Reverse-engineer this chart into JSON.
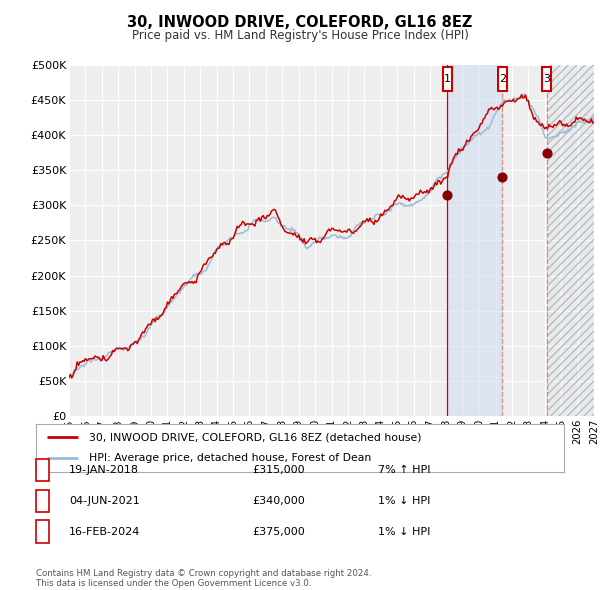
{
  "title": "30, INWOOD DRIVE, COLEFORD, GL16 8EZ",
  "subtitle": "Price paid vs. HM Land Registry's House Price Index (HPI)",
  "legend_line1": "30, INWOOD DRIVE, COLEFORD, GL16 8EZ (detached house)",
  "legend_line2": "HPI: Average price, detached house, Forest of Dean",
  "footnote1": "Contains HM Land Registry data © Crown copyright and database right 2024.",
  "footnote2": "This data is licensed under the Open Government Licence v3.0.",
  "transactions": [
    {
      "num": 1,
      "date": "19-JAN-2018",
      "price": "£315,000",
      "hpi": "7% ↑ HPI",
      "year": 2018.05
    },
    {
      "num": 2,
      "date": "04-JUN-2021",
      "price": "£340,000",
      "hpi": "1% ↓ HPI",
      "year": 2021.42
    },
    {
      "num": 3,
      "date": "16-FEB-2024",
      "price": "£375,000",
      "hpi": "1% ↓ HPI",
      "year": 2024.12
    }
  ],
  "ylim": [
    0,
    500000
  ],
  "yticks": [
    0,
    50000,
    100000,
    150000,
    200000,
    250000,
    300000,
    350000,
    400000,
    450000,
    500000
  ],
  "ytick_labels": [
    "£0",
    "£50K",
    "£100K",
    "£150K",
    "£200K",
    "£250K",
    "£300K",
    "£350K",
    "£400K",
    "£450K",
    "£500K"
  ],
  "hpi_color": "#9abcd4",
  "price_color": "#cc0000",
  "vline1_color": "#cc0000",
  "vline2_color": "#dd8888",
  "bg_color": "#ffffff",
  "plot_bg": "#eeeeee",
  "grid_color": "#ffffff",
  "shade_color": "#ccddf0",
  "hatch_color": "#cccccc",
  "xlim": [
    1995,
    2027
  ],
  "xtick_start": 1995,
  "xtick_end": 2028,
  "dot_color": "#880000",
  "dot_size": 40
}
